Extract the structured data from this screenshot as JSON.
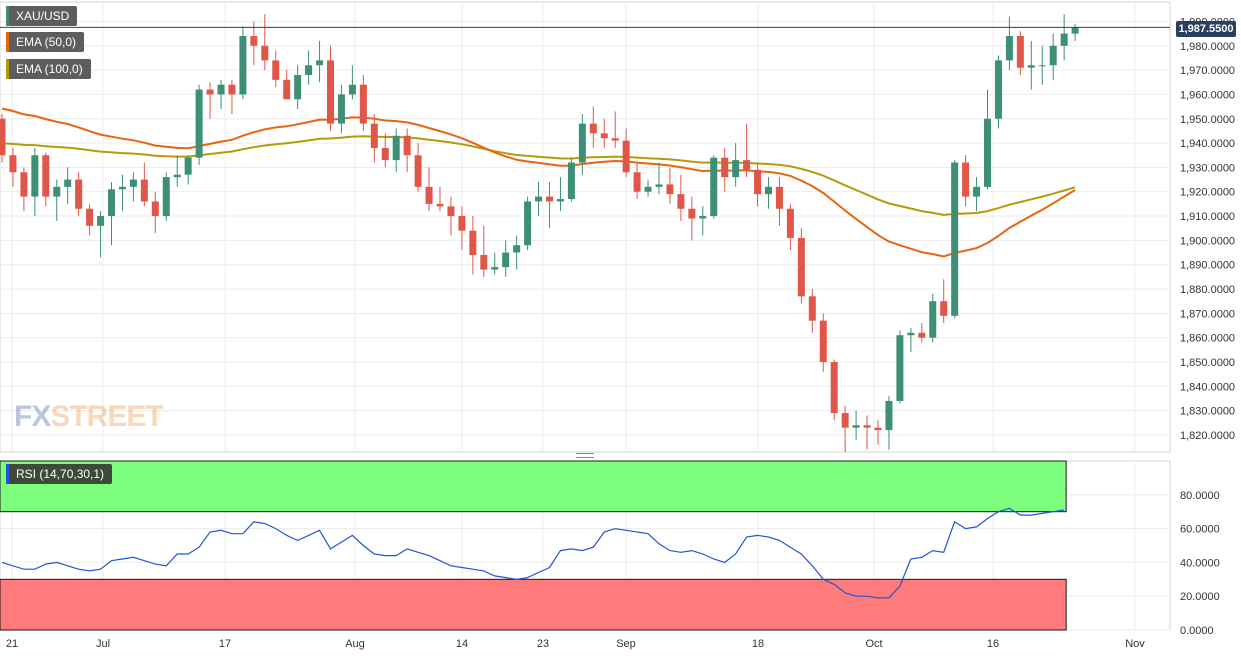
{
  "instrument": "XAU/USD",
  "indicators": {
    "ema50": {
      "label": "EMA (50,0)",
      "color": "#e8650f"
    },
    "ema100": {
      "label": "EMA (100,0)",
      "color": "#b59b0b"
    },
    "rsi": {
      "label": "RSI (14,70,30,1)",
      "color": "#2553d8"
    }
  },
  "last_price_label": "1,987.5500",
  "watermark": {
    "part1": "FX",
    "part2": "STREET"
  },
  "colors": {
    "up": "#3d8f76",
    "down": "#e0574a",
    "rsi_overbought": "#7dff7d",
    "rsi_oversold": "#ff7a7a"
  },
  "chart_data": [
    {
      "type": "candlestick",
      "title": "XAU/USD",
      "x_tick_labels": [
        "21",
        "Jul",
        "17",
        "Aug",
        "14",
        "23",
        "Sep",
        "18",
        "Oct",
        "16",
        "Nov"
      ],
      "y_tick_labels": [
        "1,820.0000",
        "1,830.0000",
        "1,840.0000",
        "1,850.0000",
        "1,860.0000",
        "1,870.0000",
        "1,880.0000",
        "1,890.0000",
        "1,900.0000",
        "1,910.0000",
        "1,920.0000",
        "1,930.0000",
        "1,940.0000",
        "1,950.0000",
        "1,960.0000",
        "1,970.0000",
        "1,980.0000",
        "1,990.0000"
      ],
      "ylim": [
        1813,
        1998
      ],
      "last_price": 1987.55,
      "grid": true,
      "candles": [
        [
          1950,
          1952,
          1932,
          1935
        ],
        [
          1935,
          1938,
          1922,
          1928
        ],
        [
          1928,
          1930,
          1912,
          1918
        ],
        [
          1918,
          1938,
          1910,
          1935
        ],
        [
          1935,
          1936,
          1914,
          1918
        ],
        [
          1918,
          1925,
          1908,
          1922
        ],
        [
          1922,
          1930,
          1915,
          1925
        ],
        [
          1925,
          1928,
          1910,
          1913
        ],
        [
          1913,
          1915,
          1902,
          1906
        ],
        [
          1906,
          1912,
          1893,
          1910
        ],
        [
          1910,
          1924,
          1898,
          1921
        ],
        [
          1921,
          1927,
          1912,
          1922
        ],
        [
          1922,
          1928,
          1916,
          1925
        ],
        [
          1925,
          1932,
          1914,
          1916
        ],
        [
          1916,
          1920,
          1903,
          1910
        ],
        [
          1910,
          1928,
          1908,
          1926
        ],
        [
          1926,
          1935,
          1922,
          1927
        ],
        [
          1927,
          1935,
          1923,
          1934
        ],
        [
          1934,
          1964,
          1931,
          1962
        ],
        [
          1962,
          1965,
          1950,
          1960
        ],
        [
          1960,
          1966,
          1954,
          1964
        ],
        [
          1964,
          1966,
          1952,
          1960
        ],
        [
          1960,
          1988,
          1958,
          1984
        ],
        [
          1984,
          1990,
          1972,
          1980
        ],
        [
          1980,
          1993,
          1970,
          1974
        ],
        [
          1974,
          1978,
          1963,
          1966
        ],
        [
          1966,
          1970,
          1958,
          1958
        ],
        [
          1958,
          1972,
          1954,
          1968
        ],
        [
          1968,
          1978,
          1964,
          1972
        ],
        [
          1972,
          1982,
          1965,
          1974
        ],
        [
          1974,
          1980,
          1945,
          1948
        ],
        [
          1948,
          1964,
          1944,
          1960
        ],
        [
          1960,
          1972,
          1958,
          1964
        ],
        [
          1964,
          1968,
          1945,
          1948
        ],
        [
          1948,
          1952,
          1932,
          1938
        ],
        [
          1938,
          1944,
          1930,
          1933
        ],
        [
          1933,
          1946,
          1928,
          1943
        ],
        [
          1943,
          1946,
          1928,
          1935
        ],
        [
          1935,
          1940,
          1920,
          1922
        ],
        [
          1922,
          1930,
          1912,
          1915
        ],
        [
          1915,
          1922,
          1912,
          1914
        ],
        [
          1914,
          1918,
          1902,
          1910
        ],
        [
          1910,
          1914,
          1896,
          1904
        ],
        [
          1904,
          1910,
          1886,
          1894
        ],
        [
          1894,
          1906,
          1885,
          1888
        ],
        [
          1888,
          1895,
          1886,
          1889
        ],
        [
          1889,
          1900,
          1885,
          1895
        ],
        [
          1895,
          1902,
          1888,
          1898
        ],
        [
          1898,
          1918,
          1896,
          1916
        ],
        [
          1916,
          1924,
          1910,
          1918
        ],
        [
          1918,
          1924,
          1905,
          1916
        ],
        [
          1916,
          1926,
          1912,
          1917
        ],
        [
          1917,
          1934,
          1916,
          1932
        ],
        [
          1932,
          1952,
          1927,
          1948
        ],
        [
          1948,
          1955,
          1938,
          1944
        ],
        [
          1944,
          1950,
          1938,
          1942
        ],
        [
          1942,
          1953,
          1938,
          1941
        ],
        [
          1941,
          1946,
          1926,
          1928
        ],
        [
          1928,
          1932,
          1917,
          1920
        ],
        [
          1920,
          1925,
          1918,
          1922
        ],
        [
          1922,
          1932,
          1919,
          1923
        ],
        [
          1923,
          1930,
          1915,
          1919
        ],
        [
          1919,
          1927,
          1908,
          1913
        ],
        [
          1913,
          1918,
          1900,
          1909
        ],
        [
          1909,
          1914,
          1902,
          1910
        ],
        [
          1910,
          1935,
          1909,
          1934
        ],
        [
          1934,
          1938,
          1920,
          1926
        ],
        [
          1926,
          1940,
          1922,
          1933
        ],
        [
          1933,
          1948,
          1926,
          1929
        ],
        [
          1929,
          1932,
          1914,
          1919
        ],
        [
          1919,
          1926,
          1913,
          1922
        ],
        [
          1922,
          1926,
          1906,
          1913
        ],
        [
          1913,
          1915,
          1896,
          1901
        ],
        [
          1901,
          1905,
          1874,
          1877
        ],
        [
          1877,
          1880,
          1862,
          1867
        ],
        [
          1867,
          1870,
          1846,
          1850
        ],
        [
          1850,
          1851,
          1826,
          1829
        ],
        [
          1829,
          1832,
          1813,
          1823
        ],
        [
          1823,
          1830,
          1818,
          1824
        ],
        [
          1824,
          1828,
          1814,
          1823
        ],
        [
          1823,
          1826,
          1816,
          1822
        ],
        [
          1822,
          1836,
          1814,
          1834
        ],
        [
          1834,
          1863,
          1833,
          1861
        ],
        [
          1861,
          1864,
          1854,
          1862
        ],
        [
          1862,
          1866,
          1858,
          1860
        ],
        [
          1860,
          1878,
          1858,
          1875
        ],
        [
          1875,
          1884,
          1866,
          1869
        ],
        [
          1869,
          1933,
          1868,
          1932
        ],
        [
          1932,
          1935,
          1914,
          1918
        ],
        [
          1918,
          1926,
          1912,
          1922
        ],
        [
          1922,
          1962,
          1921,
          1950
        ],
        [
          1950,
          1976,
          1946,
          1974
        ],
        [
          1974,
          1992,
          1970,
          1984
        ],
        [
          1984,
          1986,
          1968,
          1971
        ],
        [
          1971,
          1982,
          1962,
          1972
        ],
        [
          1972,
          1980,
          1964,
          1972
        ],
        [
          1972,
          1985,
          1966,
          1980
        ],
        [
          1980,
          1993,
          1974,
          1985
        ],
        [
          1985,
          1989,
          1982,
          1987.55
        ]
      ]
    },
    {
      "type": "line",
      "title": "RSI (14,70,30,1)",
      "y_tick_labels": [
        "0.0000",
        "20.0000",
        "40.0000",
        "60.0000",
        "80.0000"
      ],
      "ylim": [
        0,
        100
      ],
      "overbought": 70,
      "oversold": 30,
      "values": [
        40,
        38,
        36,
        36,
        39,
        40,
        38,
        36,
        35,
        36,
        41,
        42,
        43,
        41,
        39,
        38,
        45,
        45,
        49,
        58,
        59,
        57,
        57,
        64,
        63,
        60,
        56,
        53,
        56,
        59,
        48,
        52,
        56,
        50,
        45,
        44,
        44,
        48,
        46,
        44,
        41,
        38,
        37,
        36,
        35,
        32,
        31,
        30,
        31,
        34,
        37,
        47,
        48,
        47,
        49,
        58,
        60,
        59,
        58,
        57,
        51,
        47,
        46,
        47,
        45,
        42,
        40,
        45,
        55,
        56,
        55,
        53,
        49,
        45,
        38,
        30,
        27,
        22,
        20,
        20,
        19,
        19,
        26,
        42,
        43,
        47,
        46,
        64,
        60,
        61,
        66,
        70,
        72,
        68,
        68,
        69,
        70,
        71
      ]
    }
  ]
}
